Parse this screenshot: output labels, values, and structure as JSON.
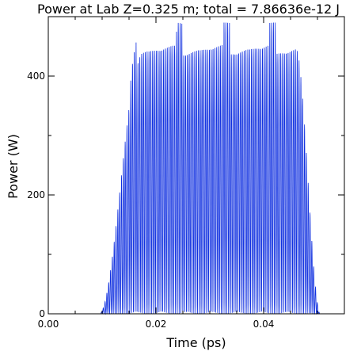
{
  "chart_data": {
    "type": "line",
    "title": "Power at Lab Z=0.325  m; total = 7.86636e-12 J",
    "xlabel": "Time (ps)",
    "ylabel": "Power (W)",
    "xlim": [
      0.0,
      0.055
    ],
    "ylim": [
      0,
      500
    ],
    "xticks": [
      0.0,
      0.02,
      0.04
    ],
    "xtick_labels": [
      "0.00",
      "0.02",
      "0.04"
    ],
    "yticks": [
      0,
      200,
      400
    ],
    "ytick_labels": [
      "0",
      "200",
      "400"
    ],
    "grid": false,
    "legend": "none",
    "colors": {
      "series": "#1030e0",
      "axes": "#000000"
    },
    "series": [
      {
        "pulse_rise_start_ps": 0.0095,
        "pulse_plateau_start_ps": 0.0175,
        "pulse_plateau_end_ps": 0.046,
        "pulse_fall_end_ps": 0.0505,
        "plateau_envelope_W": 435,
        "peak_spikes_W": 490,
        "oscillation_period_ps": 0.00034
      }
    ]
  }
}
